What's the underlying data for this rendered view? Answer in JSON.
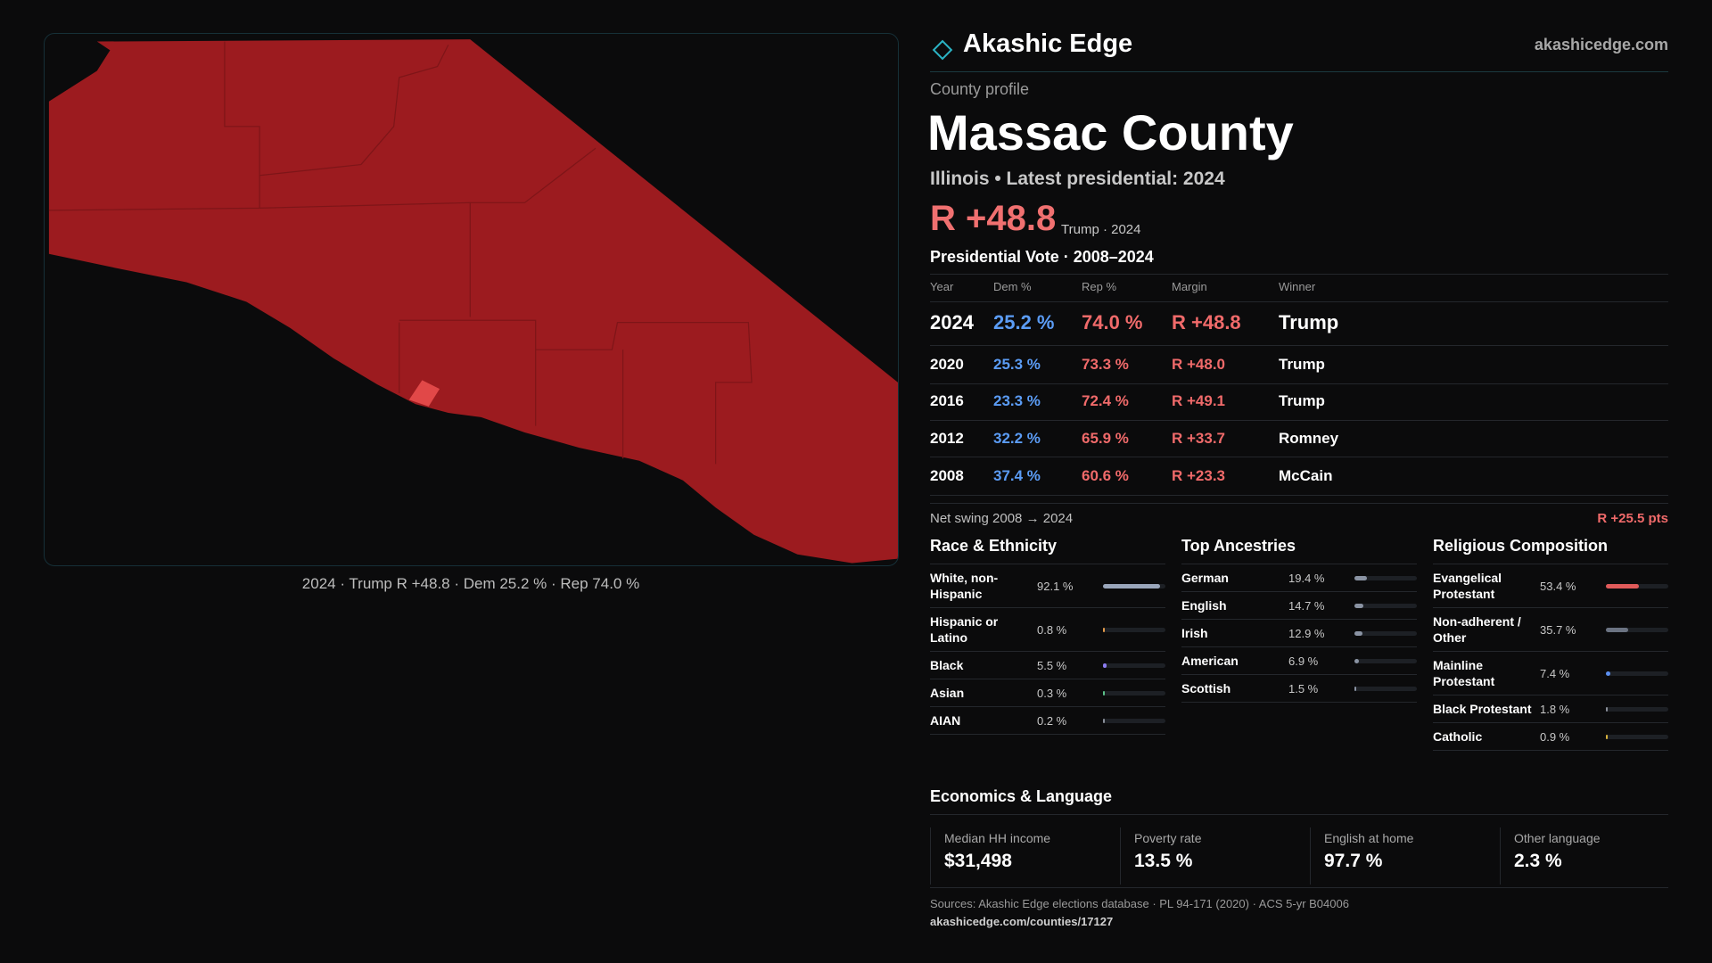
{
  "brand": "Akashic Edge",
  "site": "akashicedge.com",
  "map_caption": "2024 · Trump R +48.8 · Dem 25.2 % · Rep 74.0 %",
  "profile": {
    "kicker": "County profile",
    "title": "Massac County",
    "subtitle": "Illinois • Latest presidential: 2024",
    "headline": "R +48.8",
    "headline_note": "Trump · 2024"
  },
  "votes": {
    "title": "Presidential Vote · 2008–2024",
    "columns": [
      "Year",
      "Dem %",
      "Rep %",
      "Margin",
      "Winner"
    ],
    "rows": [
      [
        "2024",
        "25.2 %",
        "74.0 %",
        "R +48.8",
        "Trump"
      ],
      [
        "2020",
        "25.3 %",
        "73.3 %",
        "R +48.0",
        "Trump"
      ],
      [
        "2016",
        "23.3 %",
        "72.4 %",
        "R +49.1",
        "Trump"
      ],
      [
        "2012",
        "32.2 %",
        "65.9 %",
        "R +33.7",
        "Romney"
      ],
      [
        "2008",
        "37.4 %",
        "60.6 %",
        "R +23.3",
        "McCain"
      ]
    ],
    "swing_label": "Net swing 2008 → 2024",
    "swing_value": "R +25.5 pts"
  },
  "panels": [
    {
      "title": "Race & Ethnicity",
      "items": [
        {
          "name": "White, non-Hispanic",
          "value": 92.1,
          "label": "92.1 %",
          "color": "#9aa6bb"
        },
        {
          "name": "Hispanic or Latino",
          "value": 0.8,
          "label": "0.8 %",
          "color": "#e39a4a"
        },
        {
          "name": "Black",
          "value": 5.5,
          "label": "5.5 %",
          "color": "#8b7cf0"
        },
        {
          "name": "Asian",
          "value": 0.3,
          "label": "0.3 %",
          "color": "#5cc28a"
        },
        {
          "name": "AIAN",
          "value": 0.2,
          "label": "0.2 %",
          "color": "#8a8f99"
        }
      ]
    },
    {
      "title": "Top Ancestries",
      "items": [
        {
          "name": "German",
          "value": 19.4,
          "label": "19.4 %",
          "color": "#8a93a3"
        },
        {
          "name": "English",
          "value": 14.7,
          "label": "14.7 %",
          "color": "#8a93a3"
        },
        {
          "name": "Irish",
          "value": 12.9,
          "label": "12.9 %",
          "color": "#8a93a3"
        },
        {
          "name": "American",
          "value": 6.9,
          "label": "6.9 %",
          "color": "#8a93a3"
        },
        {
          "name": "Scottish",
          "value": 1.5,
          "label": "1.5 %",
          "color": "#8a93a3"
        }
      ]
    },
    {
      "title": "Religious Composition",
      "items": [
        {
          "name": "Evangelical Protestant",
          "value": 53.4,
          "label": "53.4 %",
          "color": "#e05a5a"
        },
        {
          "name": "Non-adherent / Other",
          "value": 35.7,
          "label": "35.7 %",
          "color": "#6b7382"
        },
        {
          "name": "Mainline Protestant",
          "value": 7.4,
          "label": "7.4 %",
          "color": "#5b8ff0"
        },
        {
          "name": "Black Protestant",
          "value": 1.8,
          "label": "1.8 %",
          "color": "#8a8f99"
        },
        {
          "name": "Catholic",
          "value": 0.9,
          "label": "0.9 %",
          "color": "#d8b23c"
        }
      ]
    }
  ],
  "economics": {
    "title": "Economics & Language",
    "stats": [
      {
        "label": "Median HH income",
        "value": "$31,498"
      },
      {
        "label": "Poverty rate",
        "value": "13.5 %"
      },
      {
        "label": "English at home",
        "value": "97.7 %"
      },
      {
        "label": "Other language",
        "value": "2.3 %"
      }
    ]
  },
  "sources": "Sources: Akashic Edge elections database · PL 94-171 (2020) · ACS 5-yr B04006",
  "url": "akashicedge.com/counties/17127"
}
